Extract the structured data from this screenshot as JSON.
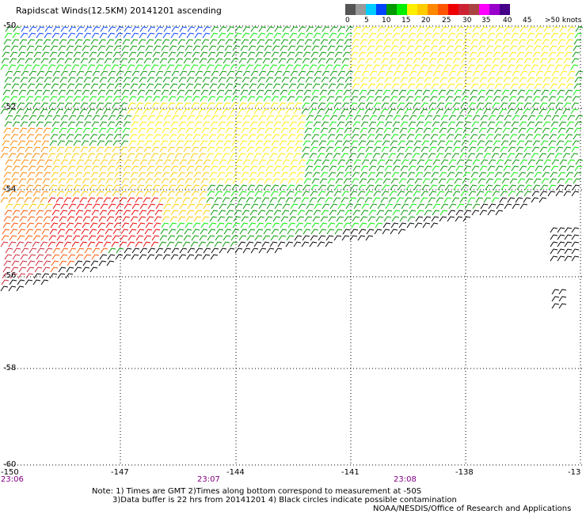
{
  "title": "Rapidscat Winds(12.5KM) 20141201 ascending",
  "legend": {
    "swatches": [
      "#555555",
      "#999999",
      "#00ccff",
      "#0044ff",
      "#009900",
      "#00ee00",
      "#ffee00",
      "#ffcc00",
      "#ff8800",
      "#ff5500",
      "#ee0000",
      "#cc2233",
      "#aa4444",
      "#ff00ff",
      "#9900cc",
      "#440088"
    ],
    "labels": [
      "0",
      "5",
      "10",
      "15",
      "20",
      "25",
      "30",
      "35",
      "40",
      "45",
      ">50 knots"
    ]
  },
  "map": {
    "lat_labels": [
      "-50",
      "-52",
      "-54",
      "-56",
      "-58",
      "-60"
    ],
    "lon_labels": [
      "-150",
      "-147",
      "-144",
      "-141",
      "-138",
      "-13"
    ],
    "time_labels": [
      "23:06",
      "23:07",
      "23:08"
    ]
  },
  "notes": {
    "line1": "Note: 1) Times are GMT 2)Times along bottom correspond to measurement at -50S",
    "line2": "3)Data buffer is 22 hrs from 20141201 4) Black circles indicate possible contamination",
    "credit": "NOAA/NESDIS/Office of Research and Applications"
  }
}
